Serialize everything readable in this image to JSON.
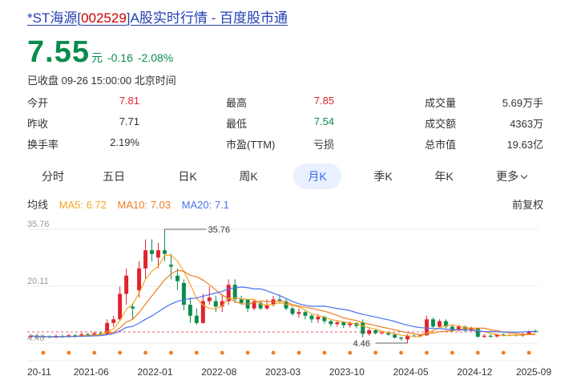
{
  "page": {
    "title_prefix": "*ST海源[",
    "title_code": "002529",
    "title_suffix": "]A股实时行情 - 百度股市通"
  },
  "quote": {
    "price": "7.55",
    "unit": "元",
    "change": "-0.16",
    "change_pct": "-2.08%",
    "status": "已收盘 09-26 15:00:00 北京时间"
  },
  "stats": [
    {
      "label": "今开",
      "value": "7.81",
      "tone": "red"
    },
    {
      "label": "最高",
      "value": "7.85",
      "tone": "red"
    },
    {
      "label": "成交量",
      "value": "5.69万手",
      "tone": "dark"
    },
    {
      "label": "昨收",
      "value": "7.71",
      "tone": "dark"
    },
    {
      "label": "最低",
      "value": "7.54",
      "tone": "green"
    },
    {
      "label": "成交额",
      "value": "4363万",
      "tone": "dark"
    },
    {
      "label": "换手率",
      "value": "2.19%",
      "tone": "dark"
    },
    {
      "label": "市盈(TTM)",
      "value": "亏损",
      "tone": "dark"
    },
    {
      "label": "总市值",
      "value": "19.63亿",
      "tone": "dark"
    }
  ],
  "tabs": [
    "分时",
    "五日",
    "日K",
    "周K",
    "月K",
    "季K",
    "年K",
    "更多"
  ],
  "active_tab": "月K",
  "indicators": {
    "label": "均线",
    "ma5": "MA5: 6.72",
    "ma10": "MA10: 7.03",
    "ma20": "MA20: 7.1",
    "adjust": "前复权"
  },
  "colors": {
    "up": "#e0232f",
    "down": "#0b8c4e",
    "ma5": "#f5a623",
    "ma10": "#f07c22",
    "ma20": "#4a72f0",
    "accent": "#3b6be8",
    "title": "#2440b3"
  },
  "chart_data": {
    "type": "candlestick",
    "period": "monthly",
    "ylim": [
      4.46,
      35.76
    ],
    "y_ticks": [
      "35.76",
      "20.11",
      "4.46"
    ],
    "x_ticks": [
      "20-11",
      "2021-06",
      "2022-01",
      "2022-08",
      "2023-03",
      "2023-10",
      "2024-05",
      "2024-12",
      "2025-09"
    ],
    "annotations": [
      {
        "text": "35.76",
        "label": "period high"
      },
      {
        "text": "4.46",
        "label": "period low"
      }
    ],
    "candles": [
      [
        6.0,
        6.5,
        5.5,
        7.0
      ],
      [
        6.5,
        6.0,
        5.8,
        7.0
      ],
      [
        6.0,
        6.3,
        5.6,
        6.8
      ],
      [
        6.3,
        6.0,
        5.8,
        6.6
      ],
      [
        6.0,
        6.4,
        5.8,
        6.9
      ],
      [
        6.4,
        6.2,
        5.9,
        6.8
      ],
      [
        6.2,
        6.6,
        5.9,
        7.0
      ],
      [
        6.6,
        6.4,
        6.0,
        7.0
      ],
      [
        6.4,
        6.9,
        6.1,
        7.4
      ],
      [
        6.9,
        6.7,
        6.4,
        7.3
      ],
      [
        6.7,
        7.2,
        6.4,
        7.6
      ],
      [
        7.2,
        7.0,
        6.7,
        7.7
      ],
      [
        7.0,
        10.0,
        6.8,
        11.0
      ],
      [
        10.0,
        11.0,
        9.0,
        12.0
      ],
      [
        11.0,
        18.0,
        10.5,
        20.0
      ],
      [
        18.0,
        23.0,
        15.0,
        25.0
      ],
      [
        14.5,
        14.0,
        11.0,
        15.5
      ],
      [
        19.0,
        25.0,
        17.0,
        27.0
      ],
      [
        25.0,
        30.0,
        22.0,
        33.0
      ],
      [
        30.0,
        29.0,
        27.0,
        33.0
      ],
      [
        28.0,
        30.0,
        25.0,
        32.0
      ],
      [
        30.0,
        29.0,
        27.0,
        35.76
      ],
      [
        26.0,
        25.5,
        22.0,
        29.0
      ],
      [
        23.0,
        21.5,
        19.0,
        25.0
      ],
      [
        21.0,
        15.0,
        13.5,
        22.0
      ],
      [
        15.0,
        12.0,
        10.0,
        17.0
      ],
      [
        12.0,
        10.0,
        9.5,
        14.0
      ],
      [
        10.0,
        16.0,
        9.8,
        18.0
      ],
      [
        16.0,
        17.0,
        15.0,
        20.0
      ],
      [
        16.0,
        14.5,
        13.0,
        17.5
      ],
      [
        14.5,
        16.0,
        13.0,
        18.0
      ],
      [
        16.0,
        20.5,
        15.0,
        22.0
      ],
      [
        20.5,
        16.5,
        15.5,
        22.0
      ],
      [
        16.5,
        15.5,
        15.0,
        17.5
      ],
      [
        16.5,
        14.0,
        13.0,
        16.5
      ],
      [
        14.0,
        16.0,
        13.5,
        16.5
      ],
      [
        15.5,
        14.0,
        13.5,
        16.0
      ],
      [
        14.0,
        15.0,
        13.6,
        16.5
      ],
      [
        15.0,
        16.5,
        14.5,
        17.5
      ],
      [
        16.5,
        16.2,
        15.3,
        17.8
      ],
      [
        16.0,
        14.0,
        13.5,
        16.5
      ],
      [
        14.0,
        12.5,
        12.0,
        14.5
      ],
      [
        12.5,
        13.0,
        11.5,
        14.0
      ],
      [
        13.0,
        12.0,
        11.0,
        13.5
      ],
      [
        12.0,
        11.0,
        10.0,
        12.5
      ],
      [
        11.0,
        11.7,
        10.0,
        12.5
      ],
      [
        11.7,
        10.5,
        9.8,
        12.0
      ],
      [
        10.5,
        9.7,
        9.0,
        10.8
      ],
      [
        9.7,
        10.2,
        9.0,
        10.8
      ],
      [
        10.2,
        9.4,
        8.6,
        10.5
      ],
      [
        9.4,
        10.0,
        8.7,
        10.5
      ],
      [
        10.0,
        9.2,
        8.5,
        10.2
      ],
      [
        10.2,
        7.0,
        6.0,
        11.0
      ],
      [
        7.0,
        8.0,
        6.5,
        8.5
      ],
      [
        8.0,
        7.2,
        6.8,
        8.3
      ],
      [
        7.2,
        7.4,
        6.9,
        7.8
      ],
      [
        7.4,
        6.8,
        6.5,
        7.6
      ],
      [
        6.8,
        6.0,
        5.7,
        7.0
      ],
      [
        6.0,
        5.7,
        5.2,
        6.2
      ],
      [
        5.5,
        6.5,
        4.46,
        6.9
      ],
      [
        6.5,
        6.4,
        6.1,
        6.8
      ],
      [
        6.3,
        6.6,
        6.1,
        6.9
      ],
      [
        6.6,
        11.0,
        6.5,
        12.0
      ],
      [
        11.0,
        9.0,
        8.5,
        11.5
      ],
      [
        9.0,
        10.5,
        8.5,
        11.0
      ],
      [
        10.5,
        9.0,
        8.5,
        11.0
      ],
      [
        9.0,
        8.0,
        7.5,
        9.5
      ],
      [
        8.0,
        9.0,
        7.6,
        9.5
      ],
      [
        9.0,
        8.0,
        7.6,
        9.3
      ],
      [
        8.0,
        8.5,
        7.8,
        9.0
      ],
      [
        8.5,
        6.2,
        6.0,
        8.7
      ],
      [
        6.2,
        6.5,
        5.9,
        7.0
      ],
      [
        6.5,
        6.3,
        6.0,
        6.8
      ],
      [
        6.3,
        6.8,
        6.0,
        7.0
      ],
      [
        6.8,
        6.6,
        6.4,
        7.2
      ],
      [
        6.6,
        6.7,
        6.4,
        7.0
      ],
      [
        6.7,
        6.5,
        6.3,
        7.1
      ],
      [
        6.5,
        7.0,
        6.2,
        7.3
      ],
      [
        7.0,
        7.6,
        6.8,
        8.0
      ],
      [
        7.8,
        7.55,
        7.3,
        8.2
      ]
    ]
  }
}
